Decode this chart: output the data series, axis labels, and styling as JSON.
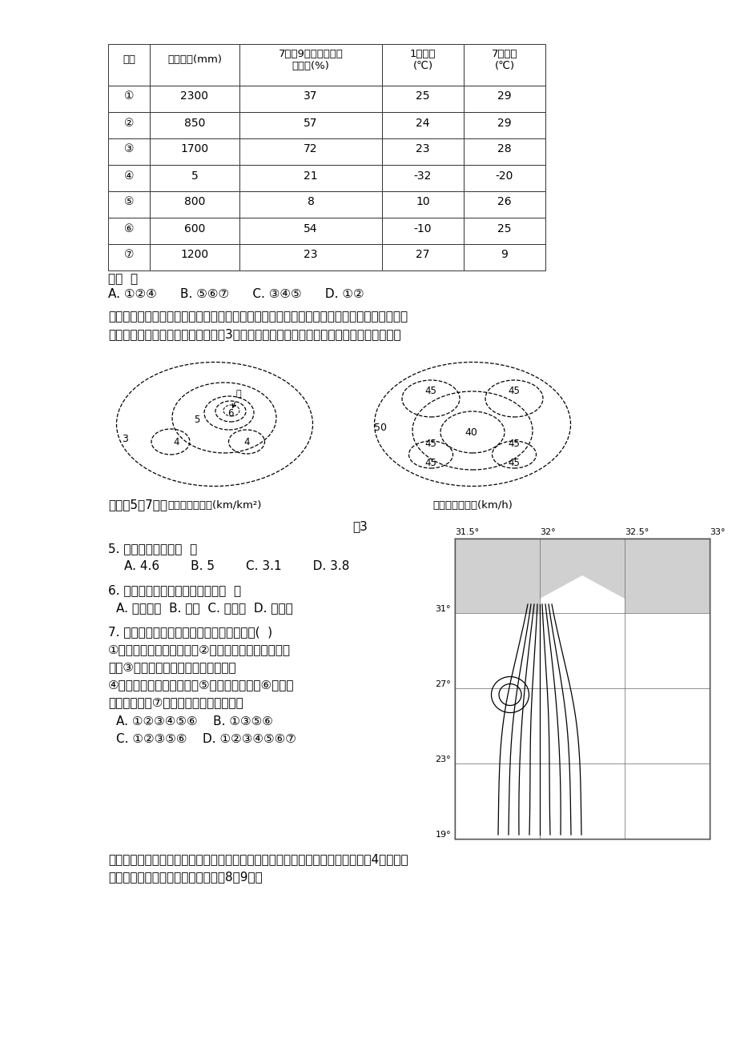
{
  "page_bg": "#ffffff",
  "table_header": [
    "类型",
    "降水总量(mm)",
    "7月～9月降水量占全\n年比重(%)",
    "1月均温\n(℃)",
    "7月均温\n(℃)"
  ],
  "table_rows": [
    [
      "①",
      "2300",
      "37",
      "25",
      "29"
    ],
    [
      "②",
      "850",
      "57",
      "24",
      "29"
    ],
    [
      "③",
      "1700",
      "72",
      "23",
      "28"
    ],
    [
      "④",
      "5",
      "21",
      "-32",
      "-20"
    ],
    [
      "⑤",
      "800",
      "8",
      "10",
      "26"
    ],
    [
      "⑥",
      "600",
      "54",
      "-10",
      "25"
    ],
    [
      "⑦",
      "1200",
      "23",
      "27",
      "9"
    ]
  ]
}
